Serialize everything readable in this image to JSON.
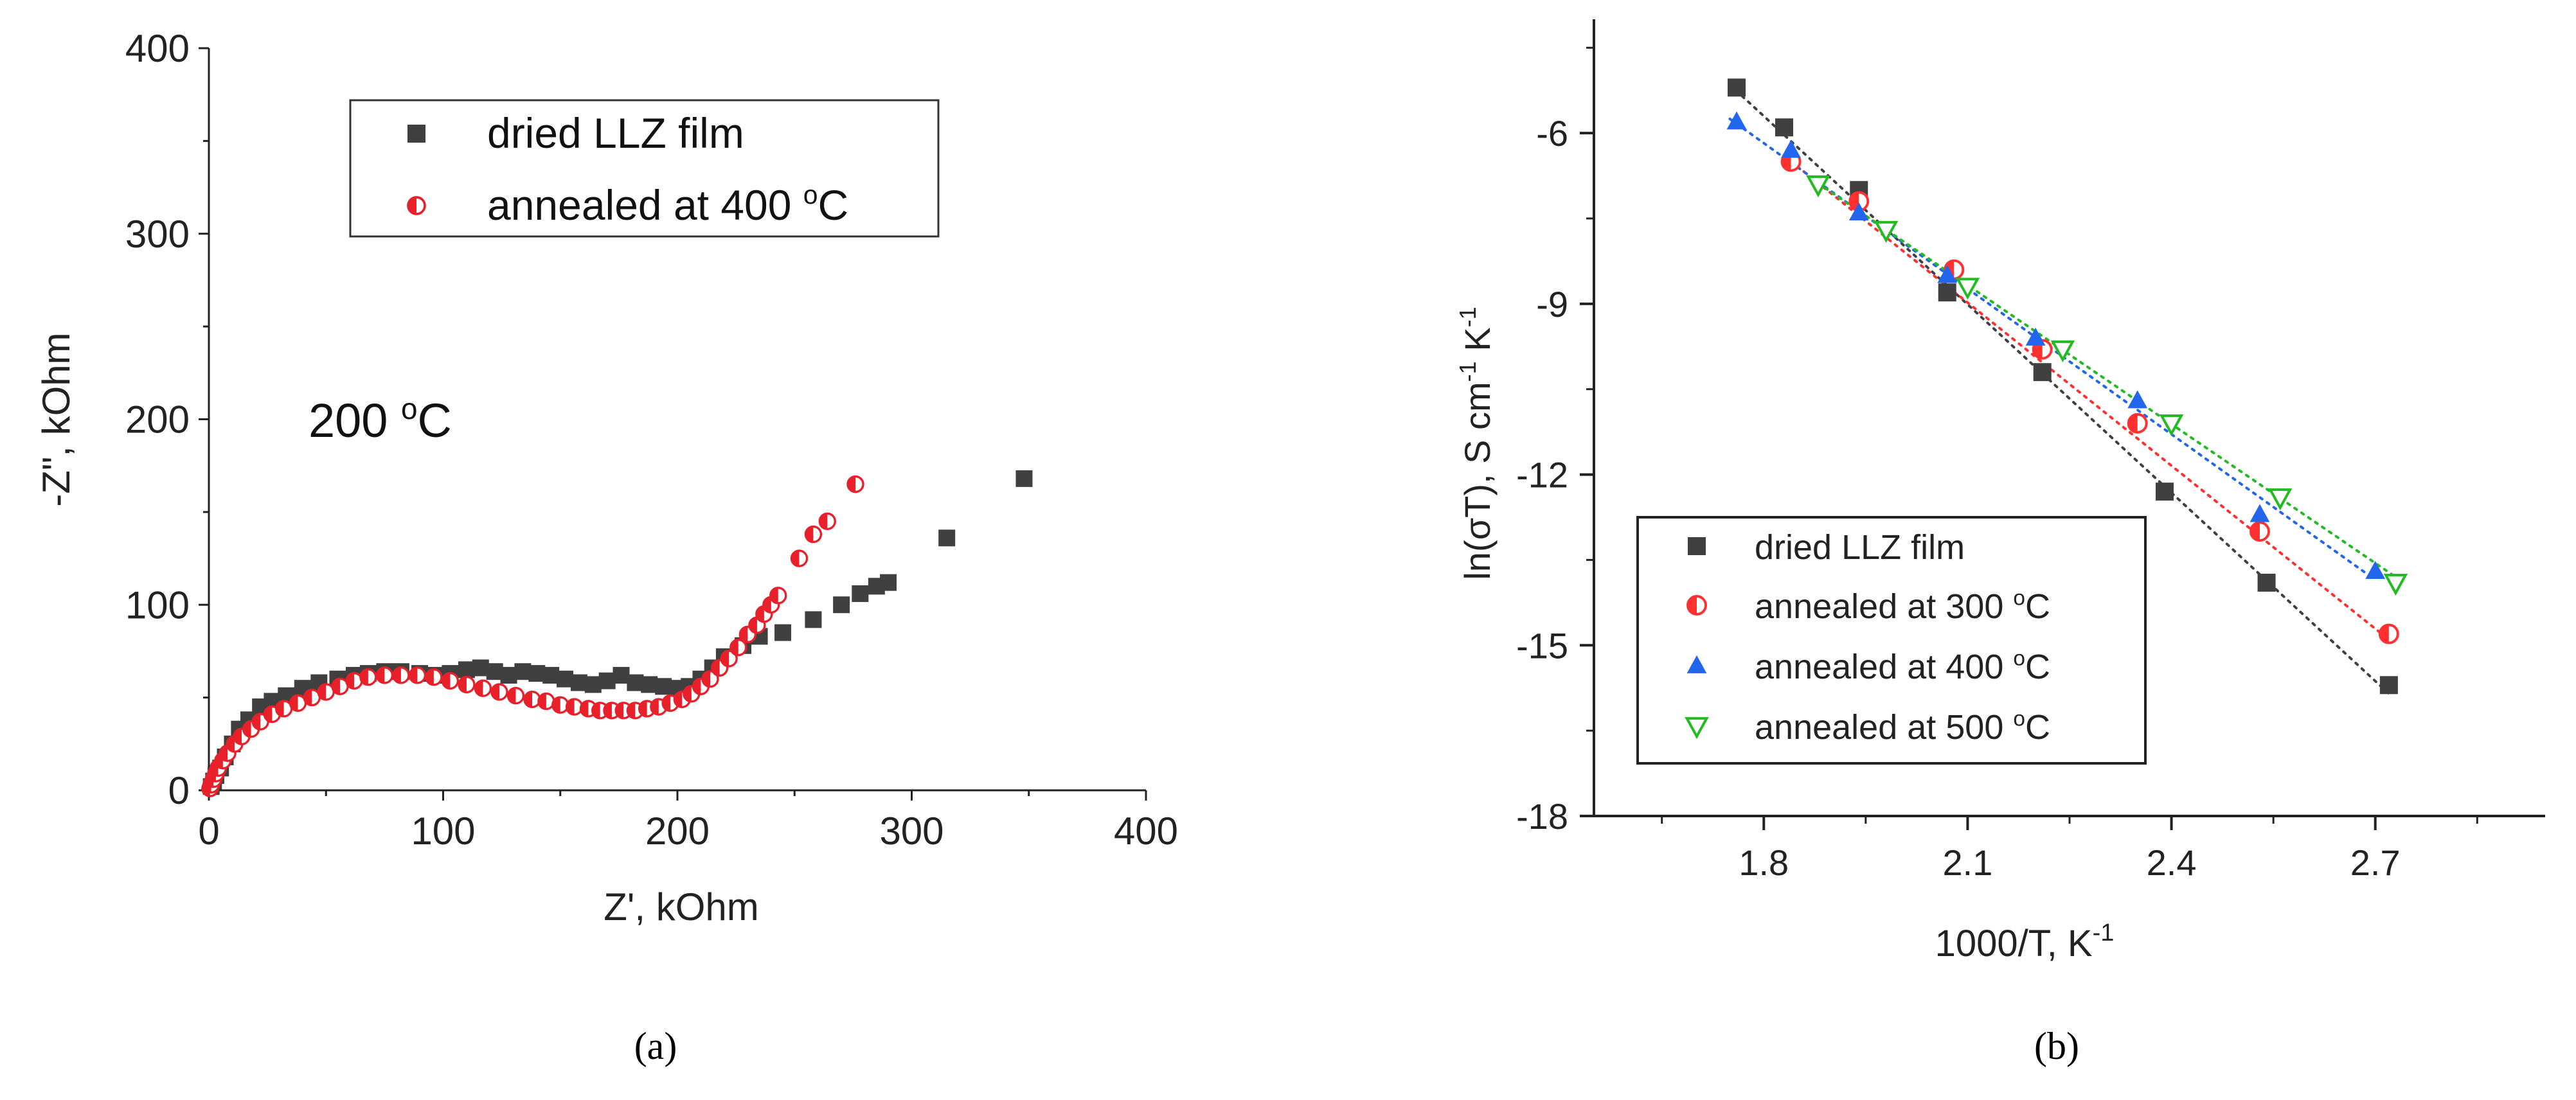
{
  "figure_captions": [
    "(a)",
    "(b)"
  ],
  "chart_data": [
    {
      "panel": "a",
      "type": "scatter",
      "xlabel": "Z', kOhm",
      "ylabel": "-Z\", kOhm",
      "annotation": "200 °C",
      "xlim": [
        0,
        400
      ],
      "ylim": [
        0,
        400
      ],
      "xticks": [
        0,
        100,
        200,
        300,
        400
      ],
      "yticks": [
        0,
        100,
        200,
        300,
        400
      ],
      "legend_position": "top-center",
      "colors": {
        "dried": "#404040",
        "annealed": "#e8202a"
      },
      "series": [
        {
          "name": "dried LLZ film",
          "marker": "square",
          "points": [
            [
              1,
              2
            ],
            [
              2,
              5
            ],
            [
              3,
              8
            ],
            [
              5,
              12
            ],
            [
              7,
              18
            ],
            [
              10,
              25
            ],
            [
              13,
              33
            ],
            [
              17,
              38
            ],
            [
              22,
              45
            ],
            [
              27,
              48
            ],
            [
              33,
              51
            ],
            [
              40,
              55
            ],
            [
              47,
              58
            ],
            [
              55,
              60
            ],
            [
              62,
              62
            ],
            [
              68,
              63
            ],
            [
              75,
              64
            ],
            [
              82,
              64
            ],
            [
              90,
              63
            ],
            [
              97,
              62
            ],
            [
              103,
              63
            ],
            [
              110,
              65
            ],
            [
              116,
              66
            ],
            [
              122,
              64
            ],
            [
              128,
              62
            ],
            [
              134,
              64
            ],
            [
              140,
              63
            ],
            [
              146,
              62
            ],
            [
              152,
              60
            ],
            [
              158,
              58
            ],
            [
              164,
              57
            ],
            [
              170,
              59
            ],
            [
              176,
              62
            ],
            [
              182,
              58
            ],
            [
              188,
              57
            ],
            [
              194,
              56
            ],
            [
              200,
              55
            ],
            [
              205,
              56
            ],
            [
              210,
              60
            ],
            [
              215,
              66
            ],
            [
              220,
              72
            ],
            [
              228,
              78
            ],
            [
              235,
              83
            ],
            [
              245,
              85
            ],
            [
              258,
              92
            ],
            [
              270,
              100
            ],
            [
              278,
              106
            ],
            [
              285,
              110
            ],
            [
              290,
              112
            ],
            [
              315,
              136
            ],
            [
              348,
              168
            ]
          ]
        },
        {
          "name": "annealed at 400 °C",
          "marker": "half-circle",
          "points": [
            [
              0.5,
              1
            ],
            [
              1,
              3
            ],
            [
              2,
              6
            ],
            [
              3,
              9
            ],
            [
              4,
              12
            ],
            [
              6,
              16
            ],
            [
              8,
              20
            ],
            [
              11,
              25
            ],
            [
              14,
              29
            ],
            [
              18,
              33
            ],
            [
              22,
              37
            ],
            [
              27,
              41
            ],
            [
              32,
              44
            ],
            [
              38,
              47
            ],
            [
              44,
              50
            ],
            [
              50,
              53
            ],
            [
              56,
              56
            ],
            [
              62,
              59
            ],
            [
              68,
              61
            ],
            [
              75,
              62
            ],
            [
              82,
              62
            ],
            [
              89,
              62
            ],
            [
              96,
              61
            ],
            [
              103,
              59
            ],
            [
              110,
              57
            ],
            [
              117,
              55
            ],
            [
              124,
              53
            ],
            [
              131,
              51
            ],
            [
              138,
              49
            ],
            [
              144,
              48
            ],
            [
              150,
              46
            ],
            [
              156,
              45
            ],
            [
              162,
              44
            ],
            [
              167,
              43
            ],
            [
              172,
              43
            ],
            [
              177,
              43
            ],
            [
              182,
              43
            ],
            [
              187,
              44
            ],
            [
              192,
              45
            ],
            [
              197,
              47
            ],
            [
              202,
              49
            ],
            [
              206,
              52
            ],
            [
              210,
              56
            ],
            [
              214,
              60
            ],
            [
              218,
              66
            ],
            [
              222,
              71
            ],
            [
              226,
              77
            ],
            [
              230,
              84
            ],
            [
              234,
              89
            ],
            [
              237,
              95
            ],
            [
              240,
              100
            ],
            [
              243,
              105
            ],
            [
              252,
              125
            ],
            [
              258,
              138
            ],
            [
              264,
              145
            ],
            [
              276,
              165
            ]
          ]
        }
      ]
    },
    {
      "panel": "b",
      "type": "scatter",
      "xlabel": "1000/T, K",
      "xlabel_sup": "-1",
      "ylabel_parts": [
        "ln(σT),  S cm",
        "-1",
        " K",
        "-1"
      ],
      "xlim": [
        1.55,
        2.95
      ],
      "ylim": [
        -18,
        -4
      ],
      "xticks": [
        1.8,
        2.1,
        2.4,
        2.7
      ],
      "yticks": [
        -6,
        -9,
        -12,
        -15,
        -18
      ],
      "legend_position": "bottom-left",
      "colors": {
        "dried": "#404040",
        "300": "#ff3030",
        "400": "#2266ee",
        "500": "#22bb22"
      },
      "series": [
        {
          "name": "dried LLZ film",
          "marker": "square",
          "points": [
            [
              1.76,
              -5.2
            ],
            [
              1.83,
              -5.9
            ],
            [
              1.94,
              -7.0
            ],
            [
              2.07,
              -8.8
            ],
            [
              2.21,
              -10.2
            ],
            [
              2.39,
              -12.3
            ],
            [
              2.54,
              -13.9
            ],
            [
              2.72,
              -15.7
            ]
          ],
          "fit": [
            [
              1.75,
              -5.15
            ],
            [
              2.72,
              -15.85
            ]
          ]
        },
        {
          "name": "annealed at 300 °C",
          "marker": "half-circle",
          "points": [
            [
              1.84,
              -6.5
            ],
            [
              1.94,
              -7.2
            ],
            [
              2.08,
              -8.4
            ],
            [
              2.21,
              -9.8
            ],
            [
              2.35,
              -11.1
            ],
            [
              2.53,
              -13.0
            ],
            [
              2.72,
              -14.8
            ]
          ],
          "fit": [
            [
              1.83,
              -6.4
            ],
            [
              2.72,
              -14.9
            ]
          ]
        },
        {
          "name": "annealed at 400 °C",
          "marker": "triangle-up",
          "points": [
            [
              1.76,
              -5.8
            ],
            [
              1.84,
              -6.3
            ],
            [
              1.94,
              -7.4
            ],
            [
              2.07,
              -8.5
            ],
            [
              2.2,
              -9.6
            ],
            [
              2.35,
              -10.7
            ],
            [
              2.53,
              -12.7
            ],
            [
              2.7,
              -13.7
            ]
          ],
          "fit": [
            [
              1.75,
              -5.75
            ],
            [
              2.7,
              -13.85
            ]
          ]
        },
        {
          "name": "annealed at 500 °C",
          "marker": "triangle-down",
          "points": [
            [
              1.88,
              -6.9
            ],
            [
              1.98,
              -7.7
            ],
            [
              2.1,
              -8.7
            ],
            [
              2.24,
              -9.8
            ],
            [
              2.4,
              -11.1
            ],
            [
              2.56,
              -12.4
            ],
            [
              2.73,
              -13.9
            ]
          ],
          "fit": [
            [
              1.87,
              -6.8
            ],
            [
              2.73,
              -13.8
            ]
          ]
        }
      ]
    }
  ]
}
